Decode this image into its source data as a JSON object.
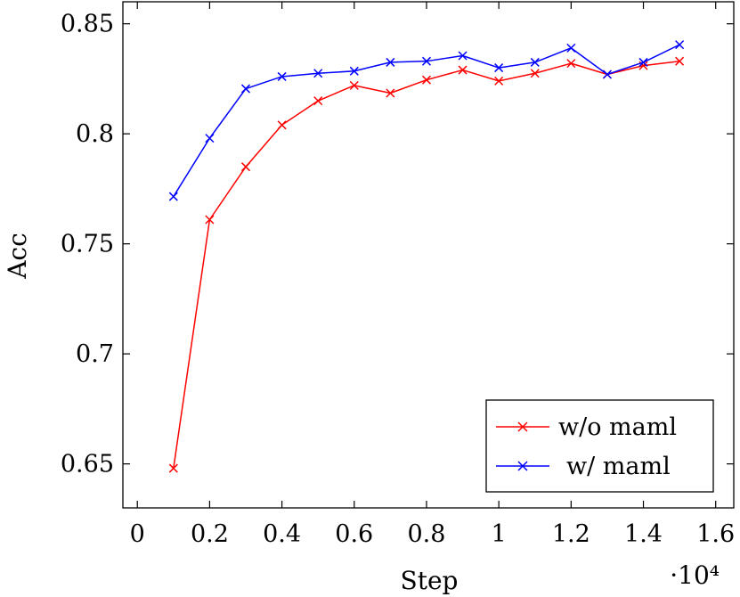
{
  "chart_data": {
    "type": "line",
    "xlabel": "Step",
    "ylabel": "Acc",
    "x_multiplier_label": "·10⁴",
    "xlim": [
      -0.04,
      1.65
    ],
    "ylim": [
      0.63,
      0.86
    ],
    "xticks": [
      0,
      0.2,
      0.4,
      0.6,
      0.8,
      1,
      1.2,
      1.4,
      1.6
    ],
    "xtick_labels": [
      "0",
      "0.2",
      "0.4",
      "0.6",
      "0.8",
      "1",
      "1.2",
      "1.4",
      "1.6"
    ],
    "yticks": [
      0.65,
      0.7,
      0.75,
      0.8,
      0.85
    ],
    "ytick_labels": [
      "0.65",
      "0.7",
      "0.75",
      "0.8",
      "0.85"
    ],
    "x": [
      0.1,
      0.2,
      0.3,
      0.4,
      0.5,
      0.6,
      0.7,
      0.8,
      0.9,
      1.0,
      1.1,
      1.2,
      1.3,
      1.4,
      1.5
    ],
    "series": [
      {
        "name": "w/o maml",
        "color": "#ff0000",
        "marker": "x",
        "values": [
          0.648,
          0.761,
          0.785,
          0.804,
          0.815,
          0.822,
          0.8185,
          0.8245,
          0.829,
          0.824,
          0.8275,
          0.832,
          0.827,
          0.831,
          0.833
        ]
      },
      {
        "name": "w/ maml",
        "color": "#0000ff",
        "marker": "x",
        "values": [
          0.7715,
          0.798,
          0.8205,
          0.826,
          0.8275,
          0.8285,
          0.8325,
          0.833,
          0.8355,
          0.83,
          0.8325,
          0.839,
          0.827,
          0.8325,
          0.8405
        ]
      }
    ],
    "legend": {
      "position": "bottom-right"
    },
    "grid": false
  }
}
